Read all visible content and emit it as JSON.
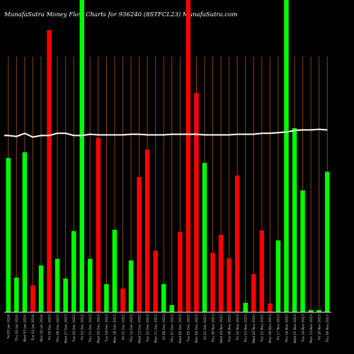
{
  "title": "MunafaSutra  Money Flow  Charts for 936240                                          (8STFCL23) MunafaSutra.com",
  "colors": {
    "up": "#00ff00",
    "down": "#ff0000",
    "grid": "#8b4513",
    "line": "#ffffff",
    "background": "#000000",
    "baseline": "#ffffff"
  },
  "chart_data": {
    "type": "bar",
    "ylim": [
      0,
      100
    ],
    "bars": [
      {
        "label": "Fri 05 Jan 2024",
        "value": 49.4,
        "color": "up"
      },
      {
        "label": "Thu 04 Jan 2024",
        "value": 11.1,
        "color": "up"
      },
      {
        "label": "Wed 03 Jan 2024",
        "value": 51.2,
        "color": "up"
      },
      {
        "label": "Tue 02 Jan 2024",
        "value": 8.6,
        "color": "down"
      },
      {
        "label": "Mon 01 Jan 2024",
        "value": 15.0,
        "color": "up"
      },
      {
        "label": "Fri 29 Dec 2023",
        "value": 90.4,
        "color": "down"
      },
      {
        "label": "Thu 28 Dec 2023",
        "value": 17.1,
        "color": "up"
      },
      {
        "label": "Wed 27 Dec 2023",
        "value": 10.8,
        "color": "up"
      },
      {
        "label": "Tue 26 Dec 2023",
        "value": 26.0,
        "color": "up"
      },
      {
        "label": "Fri 22 Dec 2023",
        "value": 100.0,
        "color": "up"
      },
      {
        "label": "Thu 21 Dec 2023",
        "value": 17.1,
        "color": "up"
      },
      {
        "label": "Wed 20 Dec 2023",
        "value": 55.9,
        "color": "down"
      },
      {
        "label": "Tue 19 Dec 2023",
        "value": 9.0,
        "color": "up"
      },
      {
        "label": "Mon 18 Dec 2023",
        "value": 26.4,
        "color": "up"
      },
      {
        "label": "Fri 15 Dec 2023",
        "value": 7.6,
        "color": "down"
      },
      {
        "label": "Thu 14 Dec 2023",
        "value": 16.6,
        "color": "up"
      },
      {
        "label": "Wed 13 Dec 2023",
        "value": 43.3,
        "color": "down"
      },
      {
        "label": "Tue 12 Dec 2023",
        "value": 52.1,
        "color": "down"
      },
      {
        "label": "Mon 11 Dec 2023",
        "value": 19.7,
        "color": "down"
      },
      {
        "label": "Fri 08 Dec 2023",
        "value": 9.0,
        "color": "up"
      },
      {
        "label": "Thu 07 Dec 2023",
        "value": 2.3,
        "color": "up"
      },
      {
        "label": "Wed 06 Dec 2023",
        "value": 25.7,
        "color": "down"
      },
      {
        "label": "Tue 05 Dec 2023",
        "value": 100.0,
        "color": "down"
      },
      {
        "label": "Mon 04 Dec 2023",
        "value": 70.2,
        "color": "down"
      },
      {
        "label": "Fri 01 Dec 2023",
        "value": 47.8,
        "color": "up"
      },
      {
        "label": "Thu 30 Nov 2023",
        "value": 19.0,
        "color": "down"
      },
      {
        "label": "Wed 29 Nov 2023",
        "value": 24.8,
        "color": "down"
      },
      {
        "label": "Tue 28 Nov 2023",
        "value": 17.3,
        "color": "down"
      },
      {
        "label": "Fri 24 Nov 2023",
        "value": 43.8,
        "color": "down"
      },
      {
        "label": "Thu 23 Nov 2023",
        "value": 3.0,
        "color": "up"
      },
      {
        "label": "Wed 22 Nov 2023",
        "value": 12.2,
        "color": "down"
      },
      {
        "label": "Tue 21 Nov 2023",
        "value": 26.2,
        "color": "down"
      },
      {
        "label": "Mon 20 Nov 2023",
        "value": 2.8,
        "color": "down"
      },
      {
        "label": "Fri 17 Nov 2023",
        "value": 23.0,
        "color": "up"
      },
      {
        "label": "Thu 16 Nov 2023",
        "value": 100.0,
        "color": "up"
      },
      {
        "label": "Wed 15 Nov 2023",
        "value": 59.0,
        "color": "up"
      },
      {
        "label": "Tue 14 Nov 2023",
        "value": 39.0,
        "color": "up"
      },
      {
        "label": "Mon 13 Nov 2023",
        "value": 0.7,
        "color": "up"
      },
      {
        "label": "Fri 10 Nov 2023",
        "value": 0.7,
        "color": "up"
      },
      {
        "label": "Thu 09 Nov 2023",
        "value": 45.0,
        "color": "up"
      }
    ],
    "line": [
      56.6,
      56.3,
      57.3,
      56.1,
      56.6,
      56.6,
      57.3,
      57.3,
      56.6,
      56.6,
      57.0,
      56.8,
      56.8,
      56.8,
      56.8,
      57.0,
      57.0,
      56.8,
      56.8,
      56.8,
      57.0,
      57.0,
      57.0,
      57.0,
      56.8,
      56.8,
      56.8,
      56.8,
      57.0,
      57.0,
      57.0,
      57.3,
      57.3,
      57.5,
      57.7,
      58.2,
      58.4,
      58.4,
      58.6,
      58.4
    ]
  }
}
